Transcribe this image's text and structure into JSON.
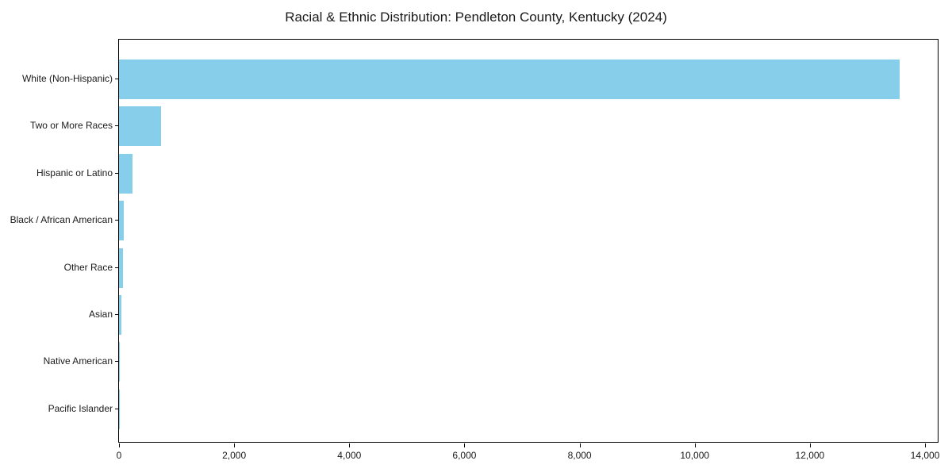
{
  "title": "Racial & Ethnic Distribution: Pendleton County, Kentucky (2024)",
  "chart_data": {
    "type": "bar",
    "orientation": "horizontal",
    "title": "Racial & Ethnic Distribution: Pendleton County, Kentucky (2024)",
    "xlabel": "",
    "ylabel": "",
    "categories": [
      "White (Non-Hispanic)",
      "Two or More Races",
      "Hispanic or Latino",
      "Black / African American",
      "Other Race",
      "Asian",
      "Native American",
      "Pacific Islander"
    ],
    "values": [
      13560,
      730,
      235,
      85,
      70,
      40,
      10,
      3
    ],
    "bar_color": "#87CEEB",
    "xlim": [
      0,
      14220
    ],
    "x_ticks": [
      0,
      2000,
      4000,
      6000,
      8000,
      10000,
      12000,
      14000
    ],
    "x_tick_labels": [
      "0",
      "2,000",
      "4,000",
      "6,000",
      "8,000",
      "10,000",
      "12,000",
      "14,000"
    ],
    "grid": false,
    "legend": null,
    "background_color": "#ffffff",
    "text_color": "#1a1a1a"
  }
}
